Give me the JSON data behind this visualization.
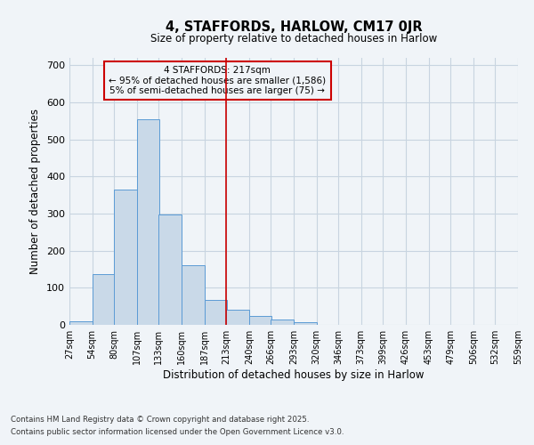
{
  "title": "4, STAFFORDS, HARLOW, CM17 0JR",
  "subtitle": "Size of property relative to detached houses in Harlow",
  "xlabel": "Distribution of detached houses by size in Harlow",
  "ylabel": "Number of detached properties",
  "bin_edges": [
    27,
    54,
    80,
    107,
    133,
    160,
    187,
    213,
    240,
    266,
    293,
    320,
    346,
    373,
    399,
    426,
    453,
    479,
    506,
    532,
    559
  ],
  "bar_heights": [
    10,
    137,
    365,
    555,
    298,
    161,
    67,
    40,
    25,
    14,
    8,
    1,
    0,
    0,
    0,
    0,
    0,
    0,
    0,
    0
  ],
  "bar_color": "#c9d9e8",
  "bar_edge_color": "#5b9bd5",
  "vline_x": 213,
  "vline_color": "#cc0000",
  "annotation_title": "4 STAFFORDS: 217sqm",
  "annotation_line1": "← 95% of detached houses are smaller (1,586)",
  "annotation_line2": "5% of semi-detached houses are larger (75) →",
  "annotation_box_edge_color": "#cc0000",
  "ylim": [
    0,
    720
  ],
  "yticks": [
    0,
    100,
    200,
    300,
    400,
    500,
    600,
    700
  ],
  "footnote1": "Contains HM Land Registry data © Crown copyright and database right 2025.",
  "footnote2": "Contains public sector information licensed under the Open Government Licence v3.0.",
  "bg_color": "#f0f4f8",
  "grid_color": "#c8d4e0"
}
